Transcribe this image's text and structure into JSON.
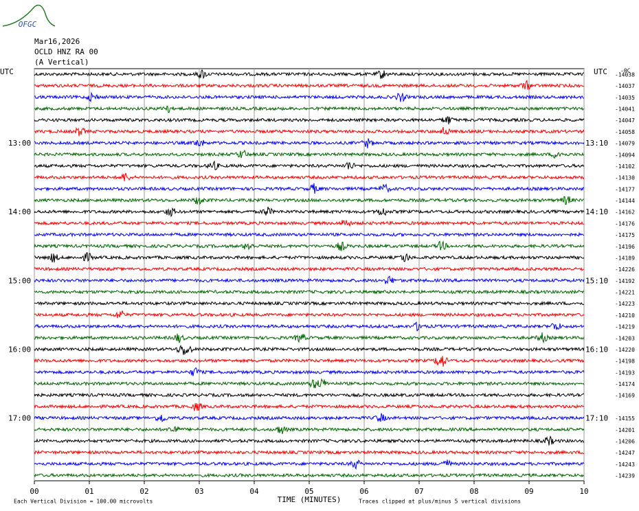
{
  "chart_data": {
    "type": "helicorder",
    "logo": "OFGC",
    "title_lines": [
      "Mar16,2026",
      "OCLD HNZ RA 00",
      "(A Vertical)"
    ],
    "left_axis_label": "UTC",
    "right_axis_label": "UTC",
    "corner_label": "-0C",
    "xlabel": "TIME (MINUTES)",
    "xlim": [
      0,
      10
    ],
    "xticks": [
      {
        "value": 0,
        "label": "00"
      },
      {
        "value": 1,
        "label": "01"
      },
      {
        "value": 2,
        "label": "02"
      },
      {
        "value": 3,
        "label": "03"
      },
      {
        "value": 4,
        "label": "04"
      },
      {
        "value": 5,
        "label": "05"
      },
      {
        "value": 6,
        "label": "06"
      },
      {
        "value": 7,
        "label": "07"
      },
      {
        "value": 8,
        "label": "08"
      },
      {
        "value": 9,
        "label": "09"
      },
      {
        "value": 10,
        "label": "10"
      }
    ],
    "grid": true,
    "colors": [
      "#000000",
      "#ff0000",
      "#0000ff",
      "#006400"
    ],
    "left_labels": [
      null,
      null,
      null,
      null,
      null,
      null,
      "13:00",
      null,
      null,
      null,
      null,
      null,
      "14:00",
      null,
      null,
      null,
      null,
      null,
      "15:00",
      null,
      null,
      null,
      null,
      null,
      "16:00",
      null,
      null,
      null,
      null,
      null,
      "17:00",
      null,
      null,
      null,
      null,
      null
    ],
    "right_labels": [
      null,
      null,
      null,
      null,
      null,
      null,
      "13:10",
      null,
      null,
      null,
      null,
      null,
      "14:10",
      null,
      null,
      null,
      null,
      null,
      "15:10",
      null,
      null,
      null,
      null,
      null,
      "16:10",
      null,
      null,
      null,
      null,
      null,
      "17:10",
      null,
      null,
      null,
      null,
      null
    ],
    "offsets": [
      -14038,
      -14037,
      -14035,
      -14041,
      -14047,
      -14058,
      -14079,
      -14094,
      -14102,
      -14130,
      -14177,
      -14144,
      -14162,
      -14176,
      -14175,
      -14196,
      -14189,
      -14226,
      -14192,
      -14221,
      -14223,
      -14210,
      -14219,
      -14203,
      -14220,
      -14198,
      -14193,
      -14174,
      -14169,
      null,
      -14155,
      -14201,
      -14206,
      -14247,
      -14243,
      -14239
    ],
    "footer_left": "Each Vertical Division =  100.00 microvolts",
    "footer_right": "Traces clipped at plus/minus 5 vertical divisions"
  }
}
